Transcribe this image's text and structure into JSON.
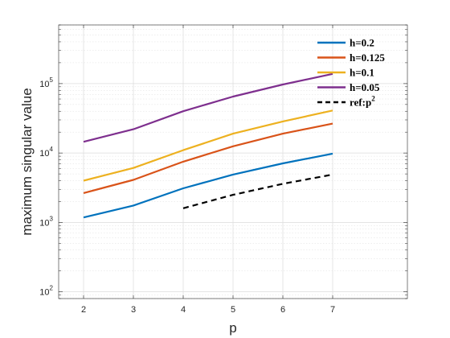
{
  "chart_data": {
    "type": "line",
    "title": "",
    "xlabel": "p",
    "ylabel": "maximum singular value",
    "x": [
      2,
      3,
      4,
      5,
      6,
      7
    ],
    "xlim": [
      1.5,
      8.5
    ],
    "ylim": [
      80,
      700000
    ],
    "yscale": "log",
    "xticks": [
      "2",
      "3",
      "4",
      "5",
      "6",
      "7"
    ],
    "yticks": [
      {
        "value": 100,
        "base": "10",
        "exp": "2"
      },
      {
        "value": 1000,
        "base": "10",
        "exp": "3"
      },
      {
        "value": 10000,
        "base": "10",
        "exp": "4"
      },
      {
        "value": 100000,
        "base": "10",
        "exp": "5"
      }
    ],
    "grid": true,
    "minor_grid": true,
    "legend_position": "top-right",
    "series": [
      {
        "name": "h=0.2",
        "color": "#0072BD",
        "dash": "solid",
        "x": [
          2,
          3,
          4,
          5,
          6,
          7
        ],
        "values": [
          1180,
          1750,
          3100,
          4900,
          7100,
          9800
        ]
      },
      {
        "name": "h=0.125",
        "color": "#D95319",
        "dash": "solid",
        "x": [
          2,
          3,
          4,
          5,
          6,
          7
        ],
        "values": [
          2650,
          4100,
          7500,
          12500,
          19000,
          26500
        ]
      },
      {
        "name": "h=0.1",
        "color": "#EDB120",
        "dash": "solid",
        "x": [
          2,
          3,
          4,
          5,
          6,
          7
        ],
        "values": [
          4000,
          6100,
          11000,
          19000,
          28500,
          41000
        ]
      },
      {
        "name": "h=0.05",
        "color": "#7E2F8E",
        "dash": "solid",
        "x": [
          2,
          3,
          4,
          5,
          6,
          7
        ],
        "values": [
          14500,
          22000,
          40000,
          65000,
          97000,
          138000
        ]
      },
      {
        "name": "ref:p",
        "name_sup": "2",
        "color": "#000000",
        "dash": "dashed",
        "x": [
          4,
          5,
          6,
          7
        ],
        "values": [
          1600,
          2500,
          3600,
          4900
        ]
      }
    ]
  }
}
